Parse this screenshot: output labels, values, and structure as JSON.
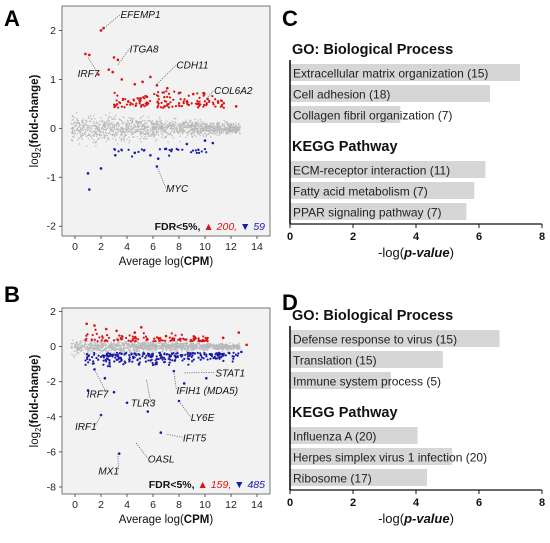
{
  "panels": [
    {
      "letter": "A"
    },
    {
      "letter": "B"
    },
    {
      "letter": "C"
    },
    {
      "letter": "D"
    }
  ],
  "chart_data": [
    {
      "id": "A",
      "type": "scatter",
      "title": "",
      "xlabel_prefix": "Average log(",
      "xlabel_bold": "CPM",
      "xlabel_suffix": ")",
      "ylabel_prefix": "log",
      "ylabel_sub": "2",
      "ylabel_bold": "(fold-change)",
      "xlim": [
        -1,
        15
      ],
      "ylim": [
        -2.2,
        2.5
      ],
      "xticks": [
        0,
        2,
        4,
        6,
        8,
        10,
        12,
        14
      ],
      "yticks": [
        -2,
        -1,
        0,
        1,
        2
      ],
      "colors": {
        "up": "#dd1111",
        "down": "#1a1aa8",
        "ns": "#b8b8b8"
      },
      "legend": {
        "fdr": "FDR<5%,",
        "up_symbol": "▲",
        "up_count": "200,",
        "down_symbol": "▼",
        "down_count": "59"
      },
      "highlight_up": [
        {
          "x": 2.0,
          "y": 2.0
        },
        {
          "x": 2.2,
          "y": 2.05
        },
        {
          "x": 0.8,
          "y": 1.52
        },
        {
          "x": 1.1,
          "y": 1.5
        },
        {
          "x": 3.0,
          "y": 1.45
        },
        {
          "x": 3.3,
          "y": 1.4
        },
        {
          "x": 2.6,
          "y": 1.2
        },
        {
          "x": 2.9,
          "y": 1.15
        },
        {
          "x": 1.8,
          "y": 1.1
        },
        {
          "x": 3.6,
          "y": 1.0
        },
        {
          "x": 5.2,
          "y": 0.95
        },
        {
          "x": 4.6,
          "y": 0.9
        },
        {
          "x": 5.8,
          "y": 1.05
        },
        {
          "x": 6.3,
          "y": 0.88
        },
        {
          "x": 7.1,
          "y": 0.82
        },
        {
          "x": 8.0,
          "y": 0.72
        },
        {
          "x": 9.1,
          "y": 0.7
        },
        {
          "x": 10.2,
          "y": 0.6
        },
        {
          "x": 11.0,
          "y": 0.55
        },
        {
          "x": 12.4,
          "y": 0.45
        },
        {
          "x": 6.9,
          "y": 0.45
        },
        {
          "x": 5.5,
          "y": 0.65
        },
        {
          "x": 4.1,
          "y": 0.55
        }
      ],
      "highlight_down": [
        {
          "x": 1.1,
          "y": -1.25
        },
        {
          "x": 2.0,
          "y": -0.82
        },
        {
          "x": 1.0,
          "y": -0.92
        },
        {
          "x": 3.1,
          "y": -0.55
        },
        {
          "x": 4.6,
          "y": -0.5
        },
        {
          "x": 5.8,
          "y": -0.55
        },
        {
          "x": 7.0,
          "y": -0.42
        },
        {
          "x": 8.6,
          "y": -0.32
        },
        {
          "x": 10.0,
          "y": -0.25
        },
        {
          "x": 10.6,
          "y": -0.3
        },
        {
          "x": 6.4,
          "y": -0.62
        },
        {
          "x": 6.3,
          "y": -0.78
        }
      ],
      "gene_labels": [
        {
          "text": "EFEMP1",
          "x": 3.5,
          "y": 2.25,
          "px": 2.1,
          "py": 2.02
        },
        {
          "text": "ITGA8",
          "x": 4.2,
          "y": 1.55,
          "px": 3.3,
          "py": 1.3
        },
        {
          "text": "IRF7",
          "x": 0.2,
          "y": 1.05,
          "px": 1.0,
          "py": 1.45
        },
        {
          "text": "CDH11",
          "x": 7.8,
          "y": 1.22,
          "px": 6.3,
          "py": 0.9
        },
        {
          "text": "COL6A2",
          "x": 10.7,
          "y": 0.7,
          "px": 10.1,
          "py": 0.6
        },
        {
          "text": "MYC",
          "x": 7.0,
          "y": -1.3,
          "px": 6.3,
          "py": -0.78
        }
      ]
    },
    {
      "id": "B",
      "type": "scatter",
      "title": "",
      "xlabel_prefix": "Average log(",
      "xlabel_bold": "CPM",
      "xlabel_suffix": ")",
      "ylabel_prefix": "log",
      "ylabel_sub": "2",
      "ylabel_bold": "(fold-change)",
      "xlim": [
        -1,
        15
      ],
      "ylim": [
        -8.4,
        2.2
      ],
      "xticks": [
        0,
        2,
        4,
        6,
        8,
        10,
        12,
        14
      ],
      "yticks": [
        -8,
        -6,
        -4,
        -2,
        0,
        2
      ],
      "colors": {
        "up": "#dd1111",
        "down": "#1a1aa8",
        "ns": "#b8b8b8"
      },
      "legend": {
        "fdr": "FDR<5%,",
        "up_symbol": "▲",
        "up_count": "159,",
        "down_symbol": "▼",
        "down_count": "485"
      },
      "highlight_up": [
        {
          "x": 0.9,
          "y": 1.3
        },
        {
          "x": 1.5,
          "y": 1.2
        },
        {
          "x": 2.4,
          "y": 1.0
        },
        {
          "x": 3.2,
          "y": 0.9
        },
        {
          "x": 4.6,
          "y": 0.8
        },
        {
          "x": 5.1,
          "y": 1.1
        },
        {
          "x": 7.0,
          "y": 0.6
        },
        {
          "x": 9.2,
          "y": 0.55
        },
        {
          "x": 11.4,
          "y": 0.5
        },
        {
          "x": 12.6,
          "y": 0.8
        },
        {
          "x": 13.2,
          "y": 0.1
        }
      ],
      "highlight_down": [
        {
          "x": 1.0,
          "y": -2.5
        },
        {
          "x": 1.5,
          "y": -1.3
        },
        {
          "x": 2.3,
          "y": -1.8
        },
        {
          "x": 3.0,
          "y": -2.6
        },
        {
          "x": 4.0,
          "y": -3.2
        },
        {
          "x": 5.6,
          "y": -3.7
        },
        {
          "x": 6.6,
          "y": -4.9
        },
        {
          "x": 2.0,
          "y": -3.9
        },
        {
          "x": 3.4,
          "y": -6.1
        },
        {
          "x": 8.4,
          "y": -2.1
        },
        {
          "x": 8.0,
          "y": -3.1
        },
        {
          "x": 7.6,
          "y": -1.4
        },
        {
          "x": 12.8,
          "y": -0.3
        },
        {
          "x": 10.1,
          "y": -1.8
        }
      ],
      "gene_labels": [
        {
          "text": "STAT1",
          "x": 10.8,
          "y": -1.7,
          "px": 8.4,
          "py": -1.5
        },
        {
          "text": "IFIH1 (MDA5)",
          "x": 7.8,
          "y": -2.7,
          "px": 7.6,
          "py": -1.4
        },
        {
          "text": "IRF7",
          "x": 0.9,
          "y": -2.9,
          "px": 1.5,
          "py": -1.3
        },
        {
          "text": "TLR3",
          "x": 4.3,
          "y": -3.4,
          "px": 5.5,
          "py": -1.9
        },
        {
          "text": "LY6E",
          "x": 8.9,
          "y": -4.25,
          "px": 8.0,
          "py": -3.1
        },
        {
          "text": "IRF1",
          "x": 0.0,
          "y": -4.75,
          "px": 2.0,
          "py": -3.9
        },
        {
          "text": "IFIT5",
          "x": 8.3,
          "y": -5.4,
          "px": 7.1,
          "py": -5.0
        },
        {
          "text": "OASL",
          "x": 5.6,
          "y": -6.6,
          "px": 4.7,
          "py": -5.5
        },
        {
          "text": "MX1",
          "x": 1.8,
          "y": -7.3,
          "px": 3.3,
          "py": -6.1
        }
      ]
    },
    {
      "id": "C",
      "type": "bar",
      "orientation": "horizontal",
      "xlabel_prefix": "-log(",
      "xlabel_bold": "p-value",
      "xlabel_suffix": ")",
      "xlim": [
        0,
        8
      ],
      "xticks": [
        0,
        2,
        4,
        6,
        8
      ],
      "bar_color": "#d6d6d6",
      "groups": [
        {
          "heading": "GO: Biological Process",
          "items": [
            {
              "label": "Extracellular matrix organization (15)",
              "value": 7.3
            },
            {
              "label": "Cell adhesion (18)",
              "value": 6.35
            },
            {
              "label": "Collagen fibril organization (7)",
              "value": 3.5
            }
          ]
        },
        {
          "heading": "KEGG Pathway",
          "items": [
            {
              "label": "ECM-receptor interaction (11)",
              "value": 6.2
            },
            {
              "label": "Fatty acid metabolism (7)",
              "value": 5.85
            },
            {
              "label": "PPAR signaling pathway (7)",
              "value": 5.6
            }
          ]
        }
      ]
    },
    {
      "id": "D",
      "type": "bar",
      "orientation": "horizontal",
      "xlabel_prefix": "-log(",
      "xlabel_bold": "p-value",
      "xlabel_suffix": ")",
      "xlim": [
        0,
        8
      ],
      "xticks": [
        0,
        2,
        4,
        6,
        8
      ],
      "bar_color": "#d6d6d6",
      "groups": [
        {
          "heading": "GO: Biological Process",
          "items": [
            {
              "label": "Defense response to virus (15)",
              "value": 6.65
            },
            {
              "label": "Translation (15)",
              "value": 4.85
            },
            {
              "label": "Immune system process (5)",
              "value": 3.2
            }
          ]
        },
        {
          "heading": "KEGG Pathway",
          "items": [
            {
              "label": "Influenza A (20)",
              "value": 4.05
            },
            {
              "label": "Herpes simplex virus 1 infection (20)",
              "value": 5.15
            },
            {
              "label": "Ribosome (17)",
              "value": 4.35
            }
          ]
        }
      ]
    }
  ]
}
